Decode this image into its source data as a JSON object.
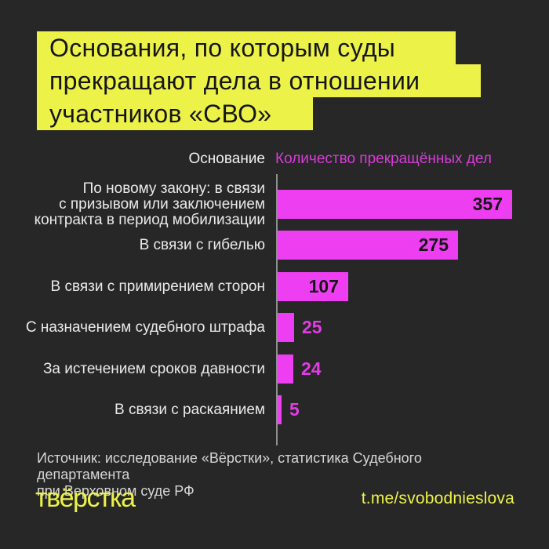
{
  "title": {
    "lines": [
      "Основания, по которым суды",
      "прекращают дела в отношении",
      "участников «СВО»"
    ]
  },
  "chart_data": {
    "type": "bar",
    "orientation": "horizontal",
    "title": "Основания, по которым суды прекращают дела в отношении участников «СВО»",
    "column_headers": {
      "category": "Основание",
      "value": "Количество прекращённых дел"
    },
    "categories": [
      [
        "По новому закону: в связи",
        "с призывом или заключением",
        "контракта в период мобилизации"
      ],
      "В связи с гибелью",
      "В связи с примирением сторон",
      "С назначением судебного штрафа",
      "За истечением сроков давности",
      "В связи с раскаянием"
    ],
    "values": [
      357,
      275,
      107,
      25,
      24,
      5
    ],
    "value_label_position": [
      "inside",
      "inside",
      "inside",
      "outside",
      "outside",
      "outside"
    ],
    "xlim": [
      0,
      357
    ],
    "grid": false,
    "legend": false
  },
  "footer": {
    "source_lines": [
      "Источник: исследование «Вёрстки», статистика Судебного департамента",
      "при Верховном суде РФ"
    ],
    "logo": "твёрстка",
    "handle": "t.me/svobodnieslova"
  },
  "colors": {
    "background": "#272727",
    "accent_yellow": "#EDF249",
    "bar_magenta": "#EE3EF2",
    "value_header_magenta": "#D83CD8",
    "outside_value_magenta": "#E23CE4",
    "title_text": "#161616",
    "label_text": "#EAEAEA",
    "source_text": "#D6D6D6",
    "axis_gray": "#8F8F8F"
  }
}
